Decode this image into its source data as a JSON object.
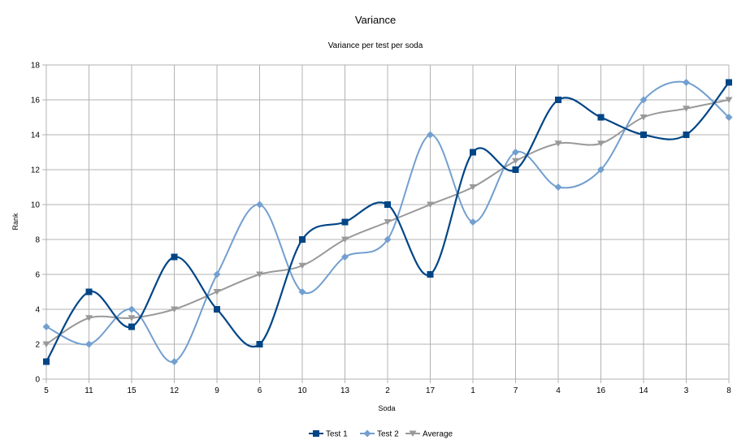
{
  "chart_data": {
    "type": "line",
    "title": "Variance",
    "subtitle": "Variance per test per soda",
    "xlabel": "Soda",
    "ylabel": "Rank",
    "ylim": [
      0,
      18
    ],
    "ytick_step": 2,
    "grid": true,
    "legend_position": "bottom",
    "categories": [
      "5",
      "11",
      "15",
      "12",
      "9",
      "6",
      "10",
      "13",
      "2",
      "17",
      "1",
      "7",
      "4",
      "16",
      "14",
      "3",
      "8"
    ],
    "series": [
      {
        "name": "Test 1",
        "color": "#004586",
        "marker": "square",
        "values": [
          1,
          5,
          3,
          7,
          4,
          2,
          8,
          9,
          10,
          6,
          13,
          12,
          16,
          15,
          14,
          14,
          17
        ]
      },
      {
        "name": "Test 2",
        "color": "#729fcf",
        "marker": "diamond",
        "values": [
          3,
          2,
          4,
          1,
          6,
          10,
          5,
          7,
          8,
          14,
          9,
          13,
          11,
          12,
          16,
          17,
          15
        ]
      },
      {
        "name": "Average",
        "color": "#999999",
        "marker": "triangle-down",
        "values": [
          2,
          3.5,
          3.5,
          4,
          5,
          6,
          6.5,
          8,
          9,
          10,
          11,
          12.5,
          13.5,
          13.5,
          15,
          15.5,
          16
        ]
      }
    ]
  }
}
